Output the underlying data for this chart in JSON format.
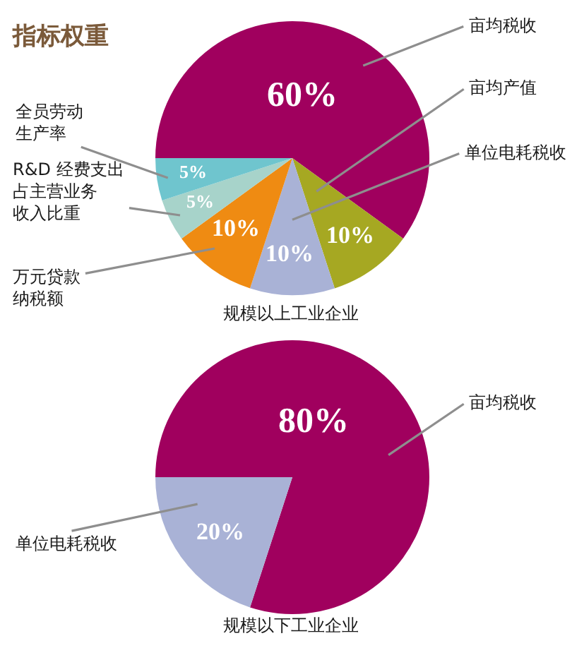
{
  "chart_data": [
    {
      "type": "pie",
      "title": "指标权重",
      "categories": [
        "亩均税收",
        "亩均产值",
        "单位电耗税收",
        "万元贷款纳税额",
        "R&D 经费支出占主营业务收入比重",
        "全员劳动生产率"
      ],
      "values": [
        60,
        10,
        10,
        10,
        5,
        5
      ],
      "colors": [
        "#a0005e",
        "#a6a822",
        "#a9b2d6",
        "#ef8b12",
        "#a7d3ca",
        "#6fc5ce"
      ],
      "value_labels": [
        "60%",
        "10%",
        "10%",
        "10%",
        "5%",
        "5%"
      ],
      "annotations": [
        "规模以上工业企业"
      ]
    },
    {
      "type": "pie",
      "categories": [
        "亩均税收",
        "单位电耗税收"
      ],
      "values": [
        80,
        20
      ],
      "colors": [
        "#a0005e",
        "#a9b2d6"
      ],
      "value_labels": [
        "80%",
        "20%"
      ],
      "annotations": [
        "规模以下工业企业"
      ]
    }
  ]
}
